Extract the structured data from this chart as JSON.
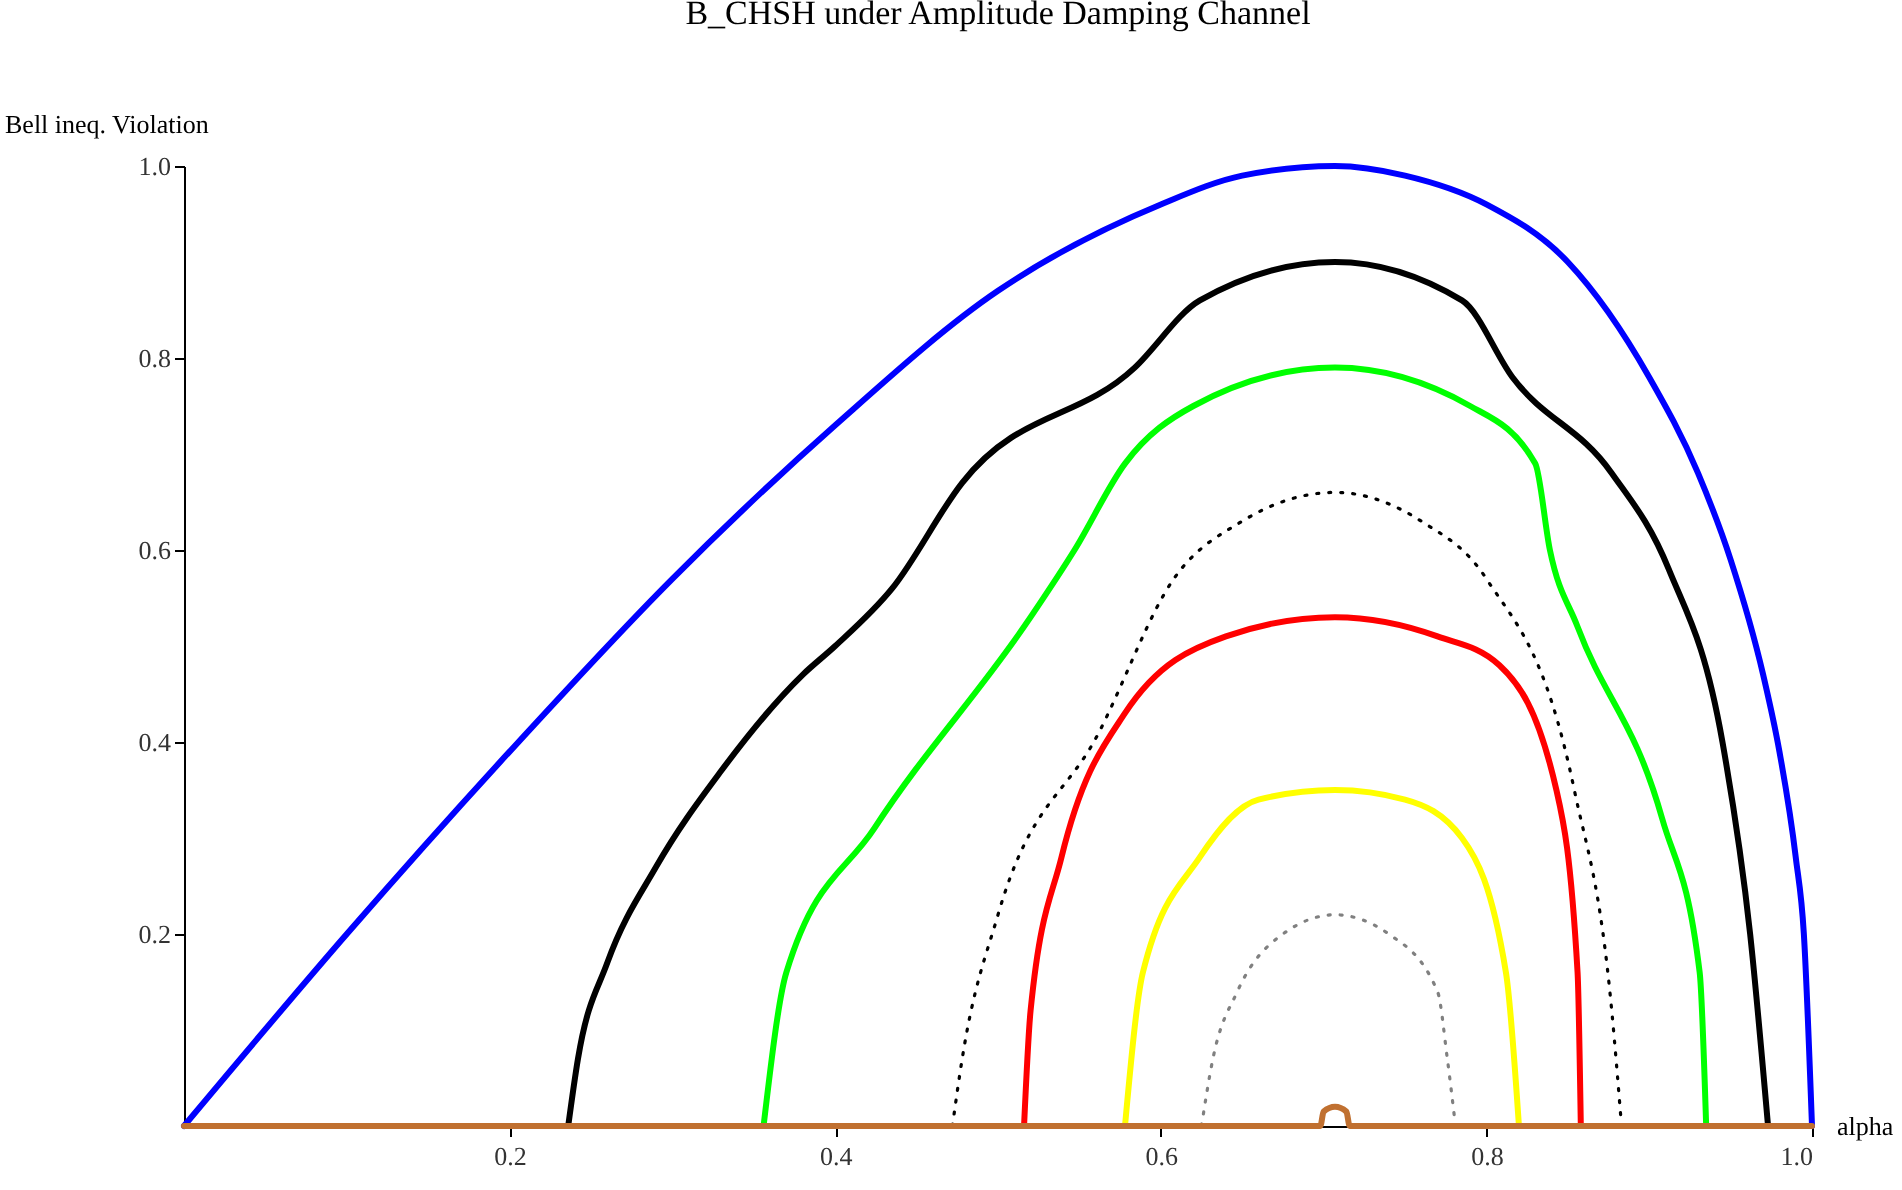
{
  "chart_data": {
    "type": "line",
    "title": "B_CHSH under Amplitude Damping Channel",
    "xlabel": "alpha",
    "ylabel": "Bell ineq. Violation",
    "xlim": [
      0,
      1.0
    ],
    "ylim": [
      0,
      1.0
    ],
    "xticks": [
      0.2,
      0.4,
      0.6,
      0.8,
      {
        "value": 1,
        "label": "1.0"
      }
    ],
    "yticks": [
      0.2,
      0.4,
      0.6,
      0.8,
      {
        "value": 1,
        "label": "1.0"
      }
    ],
    "series": [
      {
        "color": "#0000ff",
        "line_style": "solid",
        "x": [
          0,
          0.1,
          0.2,
          0.3,
          0.4,
          0.5,
          0.6,
          0.65,
          0.707,
          0.75,
          0.8,
          0.85,
          0.9,
          0.93,
          0.95,
          0.97,
          0.98,
          0.99,
          0.995,
          1.0
        ],
        "values": [
          0,
          0.2,
          0.39,
          0.57,
          0.73,
          0.87,
          0.96,
          0.99,
          1.0,
          0.99,
          0.96,
          0.9,
          0.78,
          0.68,
          0.59,
          0.47,
          0.39,
          0.28,
          0.2,
          0
        ]
      },
      {
        "color": "#000000",
        "line_style": "solid",
        "x": [
          0.236,
          0.242,
          0.26,
          0.29,
          0.33,
          0.38,
          0.4,
          0.435,
          0.478,
          0.584,
          0.624,
          0.707,
          0.785,
          0.816,
          0.877,
          0.912,
          0.945,
          0.962,
          0.973
        ],
        "values": [
          0,
          0.07,
          0.17,
          0.27,
          0.37,
          0.47,
          0.5,
          0.56,
          0.67,
          0.79,
          0.86,
          0.9,
          0.86,
          0.78,
          0.68,
          0.58,
          0.4,
          0.2,
          0
        ]
      },
      {
        "color": "#00ff00",
        "line_style": "solid",
        "x": [
          0.356,
          0.37,
          0.424,
          0.52,
          0.547,
          0.578,
          0.62,
          0.707,
          0.79,
          0.83,
          0.839,
          0.856,
          0.908,
          0.931,
          0.935
        ],
        "values": [
          0,
          0.16,
          0.31,
          0.53,
          0.6,
          0.69,
          0.75,
          0.79,
          0.75,
          0.69,
          0.6,
          0.52,
          0.32,
          0.16,
          0
        ]
      },
      {
        "color": "#000000",
        "line_style": "dotted",
        "x": [
          0.472,
          0.478,
          0.5,
          0.562,
          0.608,
          0.65,
          0.707,
          0.76,
          0.8,
          0.854,
          0.877,
          0.883
        ],
        "values": [
          0,
          0.07,
          0.22,
          0.41,
          0.57,
          0.63,
          0.66,
          0.63,
          0.57,
          0.35,
          0.12,
          0
        ]
      },
      {
        "color": "#ff0000",
        "line_style": "solid",
        "x": [
          0.516,
          0.52,
          0.539,
          0.578,
          0.64,
          0.707,
          0.77,
          0.808,
          0.843,
          0.856,
          0.858
        ],
        "values": [
          0,
          0.12,
          0.28,
          0.43,
          0.51,
          0.53,
          0.51,
          0.48,
          0.35,
          0.16,
          0
        ]
      },
      {
        "color": "#ffff00",
        "line_style": "solid",
        "x": [
          0.578,
          0.589,
          0.624,
          0.66,
          0.707,
          0.75,
          0.785,
          0.812,
          0.82
        ],
        "values": [
          0,
          0.16,
          0.28,
          0.34,
          0.35,
          0.34,
          0.3,
          0.16,
          0
        ]
      },
      {
        "color": "#808080",
        "line_style": "dotted",
        "x": [
          0.625,
          0.632,
          0.647,
          0.675,
          0.707,
          0.74,
          0.77,
          0.776,
          0.781
        ],
        "values": [
          0,
          0.07,
          0.14,
          0.2,
          0.22,
          0.2,
          0.14,
          0.07,
          0
        ]
      },
      {
        "color": "#c07030",
        "line_style": "solid",
        "x": [
          0,
          0.698,
          0.7,
          0.707,
          0.714,
          0.716,
          1.0
        ],
        "values": [
          0,
          0,
          0.015,
          0.02,
          0.015,
          0,
          0
        ]
      }
    ]
  }
}
